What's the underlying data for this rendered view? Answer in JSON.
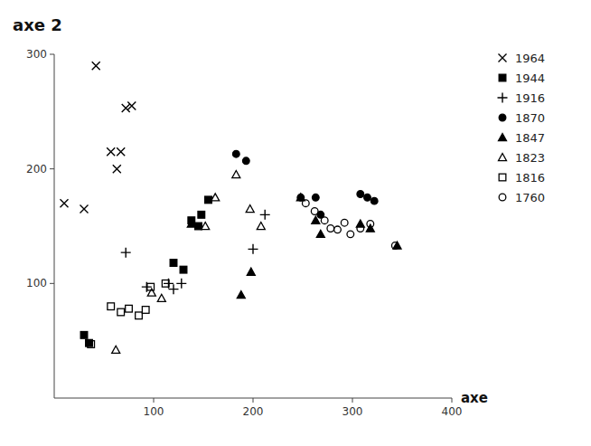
{
  "chart_data": {
    "type": "scatter",
    "x_label": "axe",
    "y_label": "axe 2",
    "xlim": [
      0,
      400
    ],
    "ylim": [
      0,
      300
    ],
    "xticks": [
      100,
      200,
      300,
      400
    ],
    "yticks": [
      100,
      200,
      300
    ],
    "grid": false,
    "legend": "right",
    "color": "#000000",
    "series": [
      {
        "name": "1964",
        "marker": "x",
        "x": [
          10,
          30,
          42,
          57,
          63,
          67,
          72,
          78
        ],
        "values": [
          170,
          165,
          290,
          215,
          200,
          215,
          253,
          255
        ]
      },
      {
        "name": "1944",
        "marker": "square",
        "x": [
          30,
          35,
          120,
          130,
          138,
          145,
          148,
          155
        ],
        "values": [
          55,
          48,
          118,
          112,
          155,
          150,
          160,
          173
        ]
      },
      {
        "name": "1916",
        "marker": "plus",
        "x": [
          72,
          93,
          115,
          120,
          128,
          200,
          212
        ],
        "values": [
          127,
          97,
          100,
          95,
          100,
          130,
          160
        ]
      },
      {
        "name": "1870",
        "marker": "circle",
        "x": [
          183,
          193,
          248,
          263,
          268,
          308,
          315,
          322
        ],
        "values": [
          213,
          207,
          175,
          175,
          160,
          178,
          175,
          172
        ]
      },
      {
        "name": "1847",
        "marker": "triangle",
        "x": [
          138,
          188,
          198,
          248,
          263,
          268,
          308,
          318,
          345
        ],
        "values": [
          152,
          90,
          110,
          175,
          155,
          143,
          152,
          148,
          133
        ]
      },
      {
        "name": "1823",
        "marker": "triangle-open",
        "x": [
          62,
          98,
          108,
          152,
          162,
          183,
          197,
          208
        ],
        "values": [
          42,
          92,
          87,
          150,
          175,
          195,
          165,
          150
        ]
      },
      {
        "name": "1816",
        "marker": "square-open",
        "x": [
          37,
          57,
          67,
          75,
          85,
          92,
          97,
          112
        ],
        "values": [
          47,
          80,
          75,
          78,
          72,
          77,
          97,
          100
        ]
      },
      {
        "name": "1760",
        "marker": "circle-open",
        "x": [
          253,
          262,
          272,
          278,
          285,
          292,
          298,
          308,
          318,
          343
        ],
        "values": [
          170,
          163,
          155,
          148,
          147,
          153,
          143,
          148,
          152,
          133
        ]
      }
    ]
  }
}
